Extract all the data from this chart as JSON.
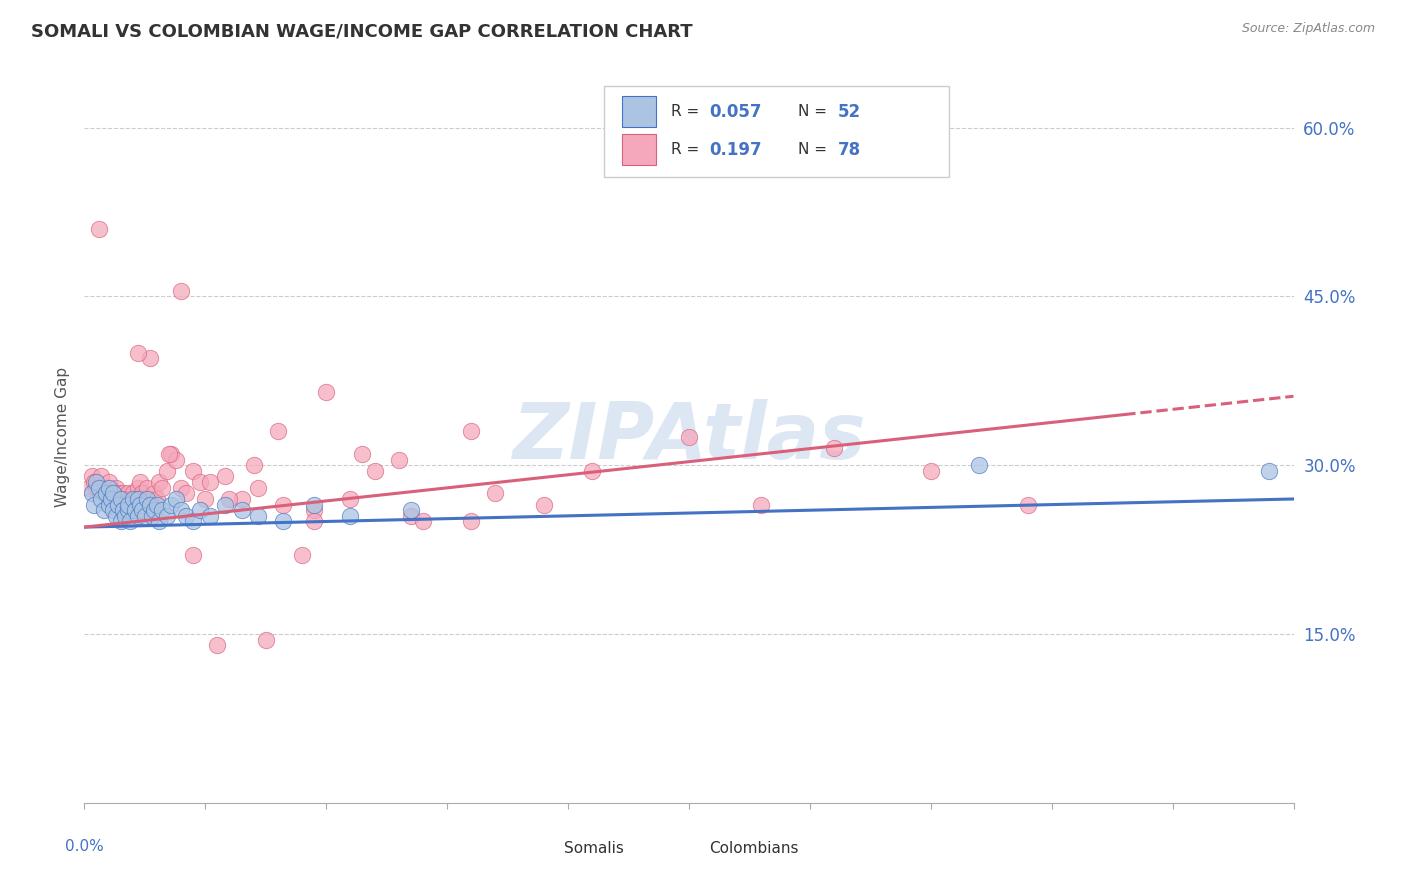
{
  "title": "SOMALI VS COLOMBIAN WAGE/INCOME GAP CORRELATION CHART",
  "source": "Source: ZipAtlas.com",
  "ylabel": "Wage/Income Gap",
  "ylabel_right_ticks": [
    0.15,
    0.3,
    0.45,
    0.6
  ],
  "ylabel_right_labels": [
    "15.0%",
    "30.0%",
    "45.0%",
    "60.0%"
  ],
  "xmin": 0.0,
  "xmax": 0.5,
  "ymin": 0.0,
  "ymax": 0.65,
  "somali_color": "#aac4e2",
  "colombian_color": "#f5a8bb",
  "somali_R": 0.057,
  "somali_N": 52,
  "colombian_R": 0.197,
  "colombian_N": 78,
  "trend_blue": "#4472c4",
  "trend_pink": "#d9607a",
  "watermark": "ZIPAtlas",
  "watermark_color": "#c5d8ec",
  "somali_x": [
    0.003,
    0.004,
    0.005,
    0.006,
    0.007,
    0.008,
    0.009,
    0.01,
    0.01,
    0.011,
    0.012,
    0.012,
    0.013,
    0.014,
    0.015,
    0.015,
    0.016,
    0.017,
    0.018,
    0.018,
    0.019,
    0.02,
    0.021,
    0.022,
    0.022,
    0.023,
    0.024,
    0.025,
    0.026,
    0.027,
    0.028,
    0.029,
    0.03,
    0.031,
    0.032,
    0.034,
    0.036,
    0.038,
    0.04,
    0.042,
    0.045,
    0.048,
    0.052,
    0.058,
    0.065,
    0.072,
    0.082,
    0.095,
    0.11,
    0.135,
    0.37,
    0.49
  ],
  "somali_y": [
    0.275,
    0.265,
    0.285,
    0.28,
    0.27,
    0.26,
    0.275,
    0.265,
    0.28,
    0.27,
    0.26,
    0.275,
    0.255,
    0.265,
    0.25,
    0.27,
    0.26,
    0.255,
    0.26,
    0.265,
    0.25,
    0.27,
    0.26,
    0.255,
    0.27,
    0.265,
    0.26,
    0.255,
    0.27,
    0.265,
    0.255,
    0.26,
    0.265,
    0.25,
    0.26,
    0.255,
    0.265,
    0.27,
    0.26,
    0.255,
    0.25,
    0.26,
    0.255,
    0.265,
    0.26,
    0.255,
    0.25,
    0.265,
    0.255,
    0.26,
    0.3,
    0.295
  ],
  "colombian_x": [
    0.002,
    0.003,
    0.004,
    0.005,
    0.006,
    0.007,
    0.008,
    0.009,
    0.01,
    0.01,
    0.011,
    0.012,
    0.012,
    0.013,
    0.014,
    0.015,
    0.015,
    0.016,
    0.017,
    0.018,
    0.018,
    0.019,
    0.02,
    0.021,
    0.022,
    0.022,
    0.023,
    0.024,
    0.025,
    0.026,
    0.027,
    0.028,
    0.029,
    0.03,
    0.031,
    0.032,
    0.034,
    0.036,
    0.038,
    0.04,
    0.042,
    0.045,
    0.048,
    0.052,
    0.058,
    0.065,
    0.072,
    0.082,
    0.095,
    0.11,
    0.135,
    0.16,
    0.19,
    0.13,
    0.17,
    0.21,
    0.25,
    0.28,
    0.31,
    0.35,
    0.39,
    0.04,
    0.06,
    0.08,
    0.1,
    0.12,
    0.14,
    0.16,
    0.045,
    0.09,
    0.022,
    0.035,
    0.05,
    0.07,
    0.095,
    0.055,
    0.075,
    0.115
  ],
  "colombian_y": [
    0.28,
    0.29,
    0.285,
    0.28,
    0.51,
    0.29,
    0.275,
    0.28,
    0.27,
    0.285,
    0.275,
    0.27,
    0.265,
    0.28,
    0.275,
    0.27,
    0.265,
    0.275,
    0.27,
    0.275,
    0.265,
    0.27,
    0.275,
    0.265,
    0.27,
    0.28,
    0.285,
    0.275,
    0.27,
    0.28,
    0.395,
    0.265,
    0.275,
    0.27,
    0.285,
    0.28,
    0.295,
    0.31,
    0.305,
    0.28,
    0.275,
    0.295,
    0.285,
    0.285,
    0.29,
    0.27,
    0.28,
    0.265,
    0.26,
    0.27,
    0.255,
    0.25,
    0.265,
    0.305,
    0.275,
    0.295,
    0.325,
    0.265,
    0.315,
    0.295,
    0.265,
    0.455,
    0.27,
    0.33,
    0.365,
    0.295,
    0.25,
    0.33,
    0.22,
    0.22,
    0.4,
    0.31,
    0.27,
    0.3,
    0.25,
    0.14,
    0.145,
    0.31
  ]
}
